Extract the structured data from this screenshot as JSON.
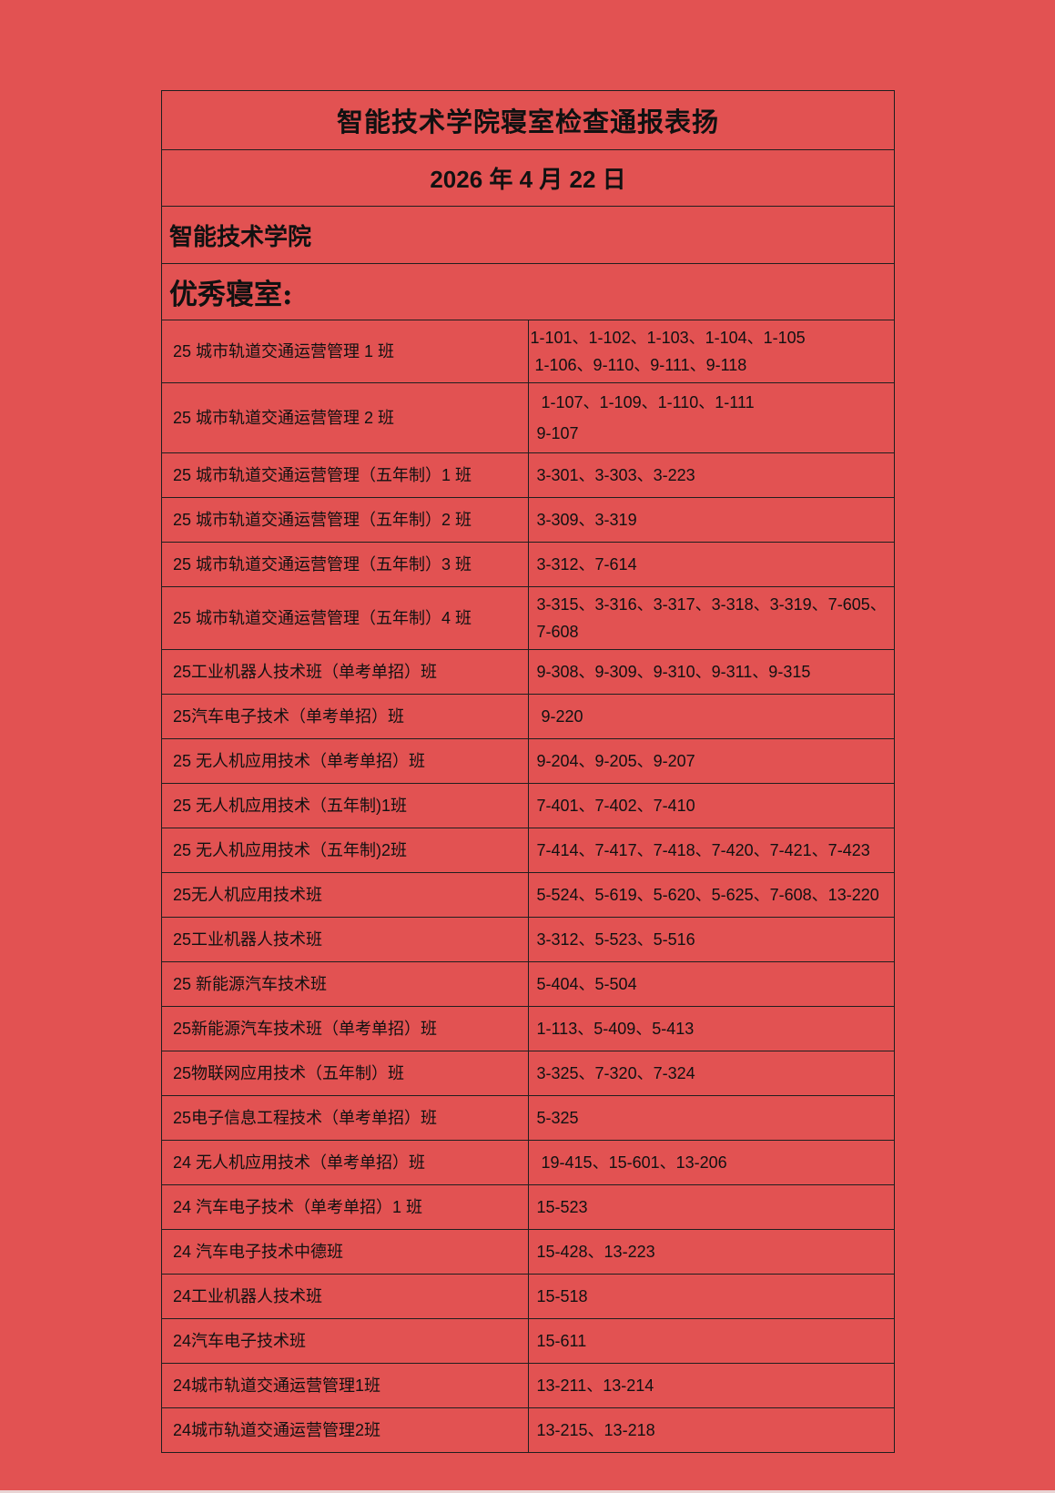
{
  "colors": {
    "page_background": "#e25252",
    "table_border": "#1f1f1f",
    "text": "#111111",
    "page_bottom_edge": "#e9d4d4"
  },
  "header": {
    "title": "智能技术学院寝室检查通报表扬",
    "date": "2026 年 4 月 22 日",
    "college": "智能技术学院",
    "section_label": "优秀寝室:"
  },
  "table": {
    "rows": [
      {
        "class_name": "25 城市轨道交通运营管理 1 班",
        "rooms": "1-101、1-102、1-103、1-104、1-105\n 1-106、9-110、9-111、9-118"
      },
      {
        "class_name": "25 城市轨道交通运营管理 2 班",
        "rooms": " 1-107、1-109、1-110、1-111\n9-107"
      },
      {
        "class_name": "25 城市轨道交通运营管理（五年制）1 班",
        "rooms": "3-301、3-303、3-223"
      },
      {
        "class_name": "25 城市轨道交通运营管理（五年制）2 班",
        "rooms": "3-309、3-319"
      },
      {
        "class_name": "25 城市轨道交通运营管理（五年制）3 班",
        "rooms": "3-312、7-614"
      },
      {
        "class_name": "25 城市轨道交通运营管理（五年制）4 班",
        "rooms": "3-315、3-316、3-317、3-318、3-319、7-605、7-608"
      },
      {
        "class_name": "25工业机器人技术班（单考单招）班",
        "rooms": "9-308、9-309、9-310、9-311、9-315"
      },
      {
        "class_name": "25汽车电子技术（单考单招）班",
        "rooms": " 9-220"
      },
      {
        "class_name": "25 无人机应用技术（单考单招）班",
        "rooms": "9-204、9-205、9-207"
      },
      {
        "class_name": "25 无人机应用技术（五年制)1班",
        "rooms": "7-401、7-402、7-410"
      },
      {
        "class_name": "25 无人机应用技术（五年制)2班",
        "rooms": "7-414、7-417、7-418、7-420、7-421、7-423"
      },
      {
        "class_name": "25无人机应用技术班",
        "rooms": "5-524、5-619、5-620、5-625、7-608、13-220"
      },
      {
        "class_name": "25工业机器人技术班",
        "rooms": "3-312、5-523、5-516"
      },
      {
        "class_name": "25 新能源汽车技术班",
        "rooms": "5-404、5-504"
      },
      {
        "class_name": "25新能源汽车技术班（单考单招）班",
        "rooms": "1-113、5-409、5-413"
      },
      {
        "class_name": "25物联网应用技术（五年制）班",
        "rooms": "3-325、7-320、7-324"
      },
      {
        "class_name": "25电子信息工程技术（单考单招）班",
        "rooms": "5-325"
      },
      {
        "class_name": "24 无人机应用技术（单考单招）班",
        "rooms": " 19-415、15-601、13-206"
      },
      {
        "class_name": "24 汽车电子技术（单考单招）1 班",
        "rooms": "15-523"
      },
      {
        "class_name": "24 汽车电子技术中德班",
        "rooms": "15-428、13-223"
      },
      {
        "class_name": "24工业机器人技术班",
        "rooms": "15-518"
      },
      {
        "class_name": "24汽车电子技术班",
        "rooms": "15-611"
      },
      {
        "class_name": "24城市轨道交通运营管理1班",
        "rooms": "13-211、13-214"
      },
      {
        "class_name": "24城市轨道交通运营管理2班",
        "rooms": "13-215、13-218"
      }
    ]
  }
}
